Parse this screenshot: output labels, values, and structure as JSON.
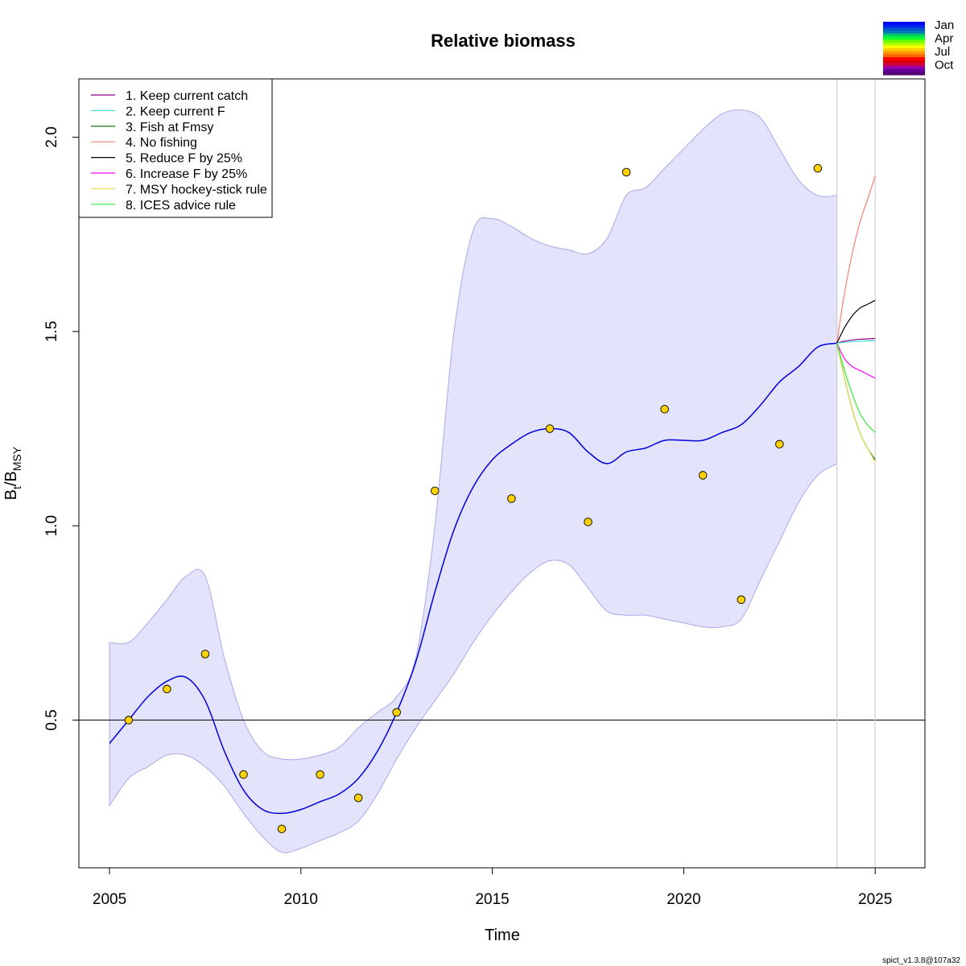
{
  "chart_data": {
    "type": "line",
    "title": "Relative biomass",
    "xlabel": "Time",
    "ylabel_main": "B",
    "ylabel_sub1": "t",
    "ylabel_mid": "/B",
    "ylabel_sub2": "MSY",
    "xlim": [
      2004.2,
      2026.3
    ],
    "ylim": [
      0.12,
      2.15
    ],
    "x_ticks": [
      2005,
      2010,
      2015,
      2020,
      2025
    ],
    "x_tick_labels": [
      "2005",
      "2010",
      "2015",
      "2020",
      "2025"
    ],
    "y_ticks": [
      0.5,
      1.0,
      1.5,
      2.0
    ],
    "y_tick_labels": [
      "0.5",
      "1.0",
      "1.5",
      "2.0"
    ],
    "grid": false,
    "reference_line_y": 0.5,
    "vertical_lines_x": [
      2024.0,
      2025.0
    ],
    "estimate": {
      "color": "#0000dd",
      "x": [
        2005.0,
        2005.5,
        2006.0,
        2006.5,
        2007.0,
        2007.5,
        2008.0,
        2008.5,
        2009.0,
        2009.5,
        2010.0,
        2010.5,
        2011.0,
        2011.5,
        2012.0,
        2012.5,
        2013.0,
        2013.5,
        2014.0,
        2014.5,
        2015.0,
        2015.5,
        2016.0,
        2016.5,
        2017.0,
        2017.5,
        2018.0,
        2018.5,
        2019.0,
        2019.5,
        2020.0,
        2020.5,
        2021.0,
        2021.5,
        2022.0,
        2022.5,
        2023.0,
        2023.5,
        2024.0
      ],
      "y": [
        0.44,
        0.5,
        0.56,
        0.6,
        0.61,
        0.55,
        0.42,
        0.32,
        0.27,
        0.26,
        0.27,
        0.29,
        0.31,
        0.35,
        0.42,
        0.52,
        0.65,
        0.83,
        0.99,
        1.1,
        1.17,
        1.21,
        1.24,
        1.25,
        1.24,
        1.19,
        1.16,
        1.19,
        1.2,
        1.22,
        1.22,
        1.22,
        1.24,
        1.26,
        1.31,
        1.37,
        1.41,
        1.46,
        1.47
      ]
    },
    "confidence_band": {
      "color": "#e3e3fb",
      "x": [
        2005.0,
        2005.5,
        2006.0,
        2006.5,
        2007.0,
        2007.5,
        2008.0,
        2008.5,
        2009.0,
        2009.5,
        2010.0,
        2010.5,
        2011.0,
        2011.5,
        2012.0,
        2012.5,
        2013.0,
        2013.5,
        2014.0,
        2014.5,
        2015.0,
        2015.5,
        2016.0,
        2016.5,
        2017.0,
        2017.5,
        2018.0,
        2018.5,
        2019.0,
        2019.5,
        2020.0,
        2020.5,
        2021.0,
        2021.5,
        2022.0,
        2022.5,
        2023.0,
        2023.5,
        2024.0
      ],
      "lower": [
        0.28,
        0.35,
        0.38,
        0.41,
        0.41,
        0.38,
        0.33,
        0.26,
        0.2,
        0.16,
        0.17,
        0.19,
        0.21,
        0.24,
        0.31,
        0.4,
        0.48,
        0.55,
        0.62,
        0.7,
        0.77,
        0.83,
        0.88,
        0.91,
        0.9,
        0.84,
        0.78,
        0.77,
        0.77,
        0.76,
        0.75,
        0.74,
        0.74,
        0.76,
        0.86,
        0.96,
        1.06,
        1.13,
        1.16
      ],
      "upper": [
        0.7,
        0.7,
        0.75,
        0.81,
        0.87,
        0.87,
        0.66,
        0.5,
        0.42,
        0.4,
        0.4,
        0.41,
        0.43,
        0.48,
        0.52,
        0.56,
        0.66,
        1.0,
        1.5,
        1.76,
        1.79,
        1.77,
        1.74,
        1.72,
        1.71,
        1.7,
        1.74,
        1.85,
        1.87,
        1.92,
        1.97,
        2.02,
        2.06,
        2.07,
        2.05,
        1.97,
        1.89,
        1.85,
        1.85
      ]
    },
    "observations": {
      "fill": "#ffd200",
      "x": [
        2005.5,
        2006.5,
        2007.5,
        2008.5,
        2009.5,
        2010.5,
        2011.5,
        2012.5,
        2013.5,
        2015.5,
        2016.5,
        2017.5,
        2018.5,
        2019.5,
        2020.5,
        2021.5,
        2022.5,
        2023.5
      ],
      "y": [
        0.5,
        0.58,
        0.67,
        0.36,
        0.22,
        0.36,
        0.3,
        0.52,
        1.09,
        1.07,
        1.25,
        1.01,
        1.91,
        1.3,
        1.13,
        0.81,
        1.21,
        1.92
      ]
    },
    "forecast_x": [
      2024.0,
      2024.2,
      2024.4,
      2024.6,
      2024.8,
      2025.0
    ],
    "series": [
      {
        "name": "1. Keep current catch",
        "color": "#8b008b",
        "values": [
          1.47,
          1.475,
          1.478,
          1.48,
          1.481,
          1.482
        ]
      },
      {
        "name": "2. Keep current F",
        "color": "#40e0d0",
        "values": [
          1.47,
          1.472,
          1.474,
          1.475,
          1.476,
          1.476
        ]
      },
      {
        "name": "3. Fish at Fmsy",
        "color": "#006400",
        "values": [
          1.47,
          1.38,
          1.3,
          1.24,
          1.2,
          1.17
        ]
      },
      {
        "name": "4. No fishing",
        "color": "#fa8072",
        "values": [
          1.47,
          1.6,
          1.7,
          1.78,
          1.84,
          1.9
        ]
      },
      {
        "name": "5. Reduce F by 25%",
        "color": "#000000",
        "values": [
          1.47,
          1.51,
          1.54,
          1.56,
          1.57,
          1.58
        ]
      },
      {
        "name": "6. Increase F by 25%",
        "color": "#ff00ff",
        "values": [
          1.47,
          1.43,
          1.41,
          1.4,
          1.39,
          1.38
        ]
      },
      {
        "name": "7. MSY hockey-stick rule",
        "color": "#eedd55",
        "values": [
          1.47,
          1.38,
          1.3,
          1.24,
          1.2,
          1.165
        ]
      },
      {
        "name": "8. ICES advice rule",
        "color": "#33ee33",
        "values": [
          1.47,
          1.4,
          1.34,
          1.29,
          1.26,
          1.24
        ]
      }
    ],
    "legend_position": "top-left",
    "season_legend": {
      "position": "top-right",
      "labels": [
        "Jan",
        "Apr",
        "Jul",
        "Oct"
      ],
      "colors": [
        "#0000ff",
        "#0022ee",
        "#0055cc",
        "#0077bb",
        "#00cc66",
        "#00ff33",
        "#66ff00",
        "#aaff00",
        "#ffff00",
        "#ffcc00",
        "#ff9900",
        "#ff6600",
        "#ff0000",
        "#dd0000",
        "#cc0044",
        "#9900aa",
        "#660099",
        "#550077"
      ]
    }
  },
  "footer": {
    "version": "spict_v1.3.8@107a32"
  }
}
